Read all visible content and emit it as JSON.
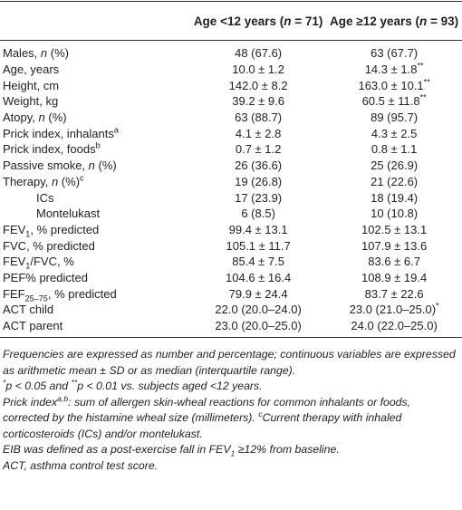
{
  "table": {
    "header": [
      [
        "Age <12 years (",
        {
          "text": "n",
          "style": "i"
        },
        " = 71)"
      ],
      [
        "Age ≥12 years (",
        {
          "text": "n",
          "style": "i"
        },
        " = 93)"
      ]
    ],
    "rows": [
      [
        [
          "Males, ",
          {
            "text": "n",
            "style": "i"
          },
          " (%)"
        ],
        "48 (67.6)",
        "63 (67.7)"
      ],
      [
        "Age, years",
        "10.0 ± 1.2",
        [
          "14.3 ± 1.8",
          {
            "text": "**",
            "style": "sup"
          }
        ]
      ],
      [
        "Height, cm",
        "142.0 ± 8.2",
        [
          "163.0 ± 10.1",
          {
            "text": "**",
            "style": "sup"
          }
        ]
      ],
      [
        "Weight, kg",
        "39.2 ± 9.6",
        [
          "60.5 ± 11.8",
          {
            "text": "**",
            "style": "sup"
          }
        ]
      ],
      [
        [
          "Atopy, ",
          {
            "text": "n",
            "style": "i"
          },
          " (%)"
        ],
        "63 (88.7)",
        "89 (95.7)"
      ],
      [
        [
          "Prick index, inhalants",
          {
            "text": "a",
            "style": "sup"
          }
        ],
        "4.1 ± 2.8",
        "4.3 ± 2.5"
      ],
      [
        [
          "Prick index, foods",
          {
            "text": "b",
            "style": "sup"
          }
        ],
        "0.7 ± 1.2",
        "0.8 ± 1.1"
      ],
      [
        [
          "Passive smoke, ",
          {
            "text": "n",
            "style": "i"
          },
          " (%)"
        ],
        "26 (36.6)",
        "25 (26.9)"
      ],
      [
        [
          "Therapy, ",
          {
            "text": "n",
            "style": "i"
          },
          " (%)",
          {
            "text": "c",
            "style": "sup"
          }
        ],
        "19 (26.8)",
        "21 (22.6)"
      ],
      [
        "ICs",
        "17 (23.9)",
        "18 (19.4)"
      ],
      [
        "Montelukast",
        "6 (8.5)",
        "10 (10.8)"
      ],
      [
        [
          "FEV",
          {
            "text": "1",
            "style": "sub"
          },
          ", % predicted"
        ],
        "99.4 ± 13.1",
        "102.5 ± 13.1"
      ],
      [
        "FVC, % predicted",
        "105.1 ± 11.7",
        "107.9 ± 13.6"
      ],
      [
        [
          "FEV",
          {
            "text": "1",
            "style": "sub"
          },
          "/FVC, %"
        ],
        "85.4 ± 7.5",
        "83.6 ± 6.7"
      ],
      [
        "PEF% predicted",
        "104.6 ± 16.4",
        "108.9 ± 19.4"
      ],
      [
        [
          "FEF",
          {
            "text": "25–75",
            "style": "sub"
          },
          ", % predicted"
        ],
        "79.9 ± 24.4",
        "83.7 ± 22.6"
      ],
      [
        "ACT child",
        "22.0 (20.0–24.0)",
        [
          "23.0 (21.0–25.0)",
          {
            "text": "*",
            "style": "sup"
          }
        ]
      ],
      [
        "ACT parent",
        "23.0 (20.0–25.0)",
        "24.0 (22.0–25.0)"
      ]
    ]
  },
  "footnotes": [
    [
      "Frequencies are expressed as number and percentage; continuous variables are expressed as arithmetic mean ± SD or as median (interquartile range)."
    ],
    [
      {
        "text": "*",
        "style": "sup"
      },
      "p < 0.05 and ",
      {
        "text": "**",
        "style": "sup"
      },
      "p < 0.01 vs. subjects aged <12 years."
    ],
    [
      "Prick index",
      {
        "text": "a,b",
        "style": "sup"
      },
      ": sum of allergen skin-wheal reactions for common inhalants or foods, corrected by the histamine wheal size (millimeters). ",
      {
        "text": "c",
        "style": "sup"
      },
      "Current therapy with inhaled corticosteroids (ICs) and/or montelukast."
    ],
    [
      "EIB was defined as a post-exercise fall in FEV",
      {
        "text": "1",
        "style": "sub"
      },
      " ≥12% from baseline."
    ],
    [
      "ACT, asthma control test score."
    ]
  ]
}
